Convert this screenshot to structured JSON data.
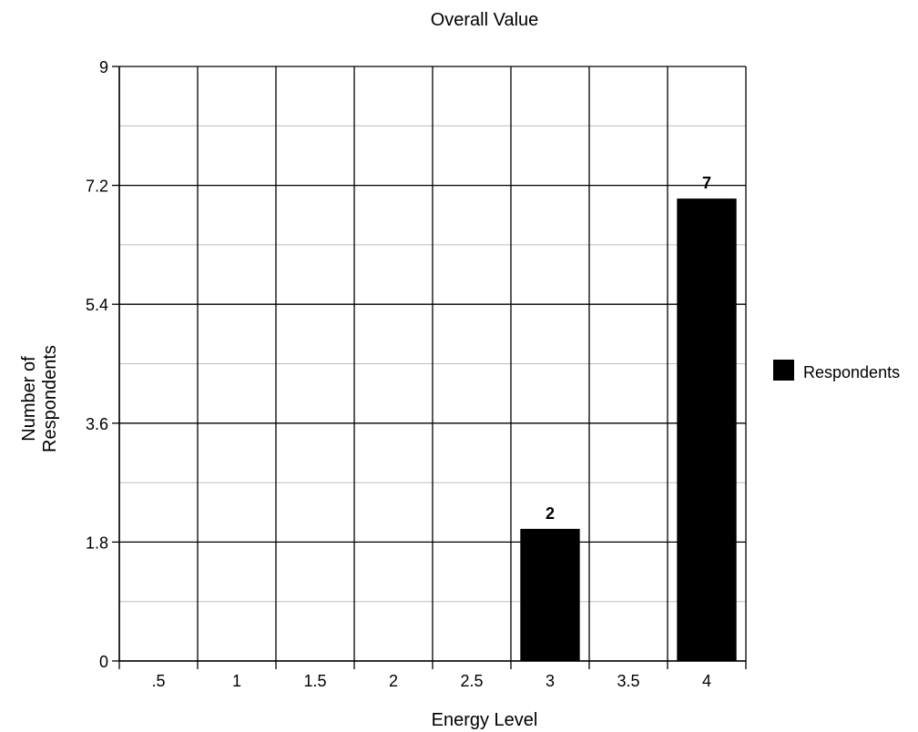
{
  "chart_data": {
    "type": "bar",
    "title": "Overall Value",
    "xlabel": "Energy Level",
    "ylabel": "Number of Respondents",
    "ylabel_lines": [
      "Number of",
      "Respondents"
    ],
    "categories": [
      ".5",
      "1",
      "1.5",
      "2",
      "2.5",
      "3",
      "3.5",
      "4"
    ],
    "series": [
      {
        "name": "Respondents",
        "values": [
          0,
          0,
          0,
          0,
          0,
          2,
          0,
          7
        ],
        "color": "#000000"
      }
    ],
    "data_labels": [
      "",
      "",
      "",
      "",
      "",
      "2",
      "",
      "7"
    ],
    "ylim": [
      0,
      9
    ],
    "yticks": [
      0,
      1.8,
      3.6,
      5.4,
      7.2,
      9
    ],
    "ytick_labels": [
      "0",
      "1.8",
      "3.6",
      "5.4",
      "7.2",
      "9"
    ],
    "grid": true,
    "legend_position": "right"
  }
}
